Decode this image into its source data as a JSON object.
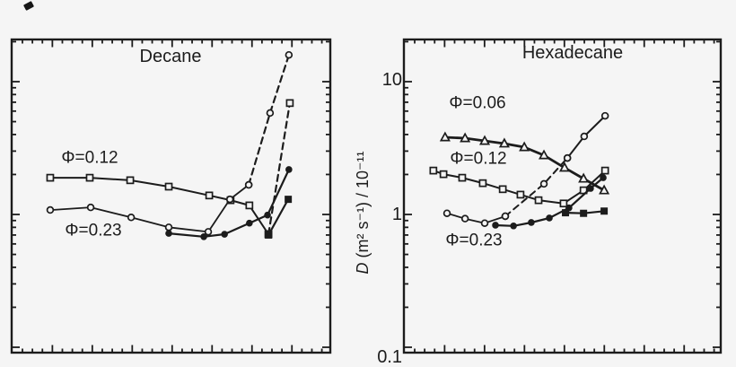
{
  "figure": {
    "background": "#f5f5f5",
    "ink": "#1c1c1c",
    "y_axis": {
      "label_d": "D",
      "label_rest": " (m² s⁻¹) / 10⁻¹¹",
      "scale": "log",
      "tick_labels": [
        "10",
        "1",
        "0.1"
      ],
      "range": [
        0.1,
        20
      ]
    },
    "x_axis": {
      "tick_labels": [],
      "note": "unlabeled minor/major tick marks on top and bottom edges of both panels"
    }
  },
  "chart_data": [
    {
      "type": "line",
      "title": "Decane",
      "ylabel": "D (m2 s-1) / 10-11",
      "yscale": "log",
      "ylim": [
        0.1,
        20
      ],
      "grid": false,
      "legend": "in-plot text annotations",
      "annotations": [
        {
          "text": "Φ=0.12"
        },
        {
          "text": "Φ=0.23"
        }
      ],
      "series": [
        {
          "name": "phi-0.12-open-squares",
          "marker": "square-open",
          "line": "solid",
          "width": 2.0,
          "points": [
            [
              0.121,
              1.89
            ],
            [
              0.245,
              1.89
            ],
            [
              0.372,
              1.81
            ],
            [
              0.493,
              1.62
            ],
            [
              0.62,
              1.39
            ],
            [
              0.687,
              1.28
            ],
            [
              0.746,
              1.17
            ],
            [
              0.806,
              0.71
            ]
          ]
        },
        {
          "name": "phi-0.12-dashed-rise",
          "marker": "square-open",
          "line": "dashed",
          "width": 2.2,
          "points": [
            [
              0.806,
              0.71
            ],
            [
              0.873,
              6.9
            ]
          ]
        },
        {
          "name": "filled-squares",
          "marker": "square-filled",
          "line": "solid",
          "width": 2.2,
          "points": [
            [
              0.806,
              0.7
            ],
            [
              0.868,
              1.3
            ]
          ]
        },
        {
          "name": "phi-0.23-open-circles",
          "marker": "circle-open",
          "line": "solid",
          "width": 1.8,
          "points": [
            [
              0.121,
              1.08
            ],
            [
              0.248,
              1.13
            ],
            [
              0.375,
              0.95
            ],
            [
              0.493,
              0.8
            ],
            [
              0.617,
              0.74
            ],
            [
              0.685,
              1.3
            ],
            [
              0.744,
              1.67
            ]
          ]
        },
        {
          "name": "phi-0.23-dashed-rise",
          "marker": "circle-open",
          "line": "dashed",
          "width": 2.2,
          "points": [
            [
              0.744,
              1.67
            ],
            [
              0.811,
              5.81
            ],
            [
              0.87,
              15.9
            ]
          ]
        },
        {
          "name": "filled-circles",
          "marker": "circle-filled",
          "line": "solid",
          "width": 2.2,
          "points": [
            [
              0.493,
              0.72
            ],
            [
              0.603,
              0.68
            ],
            [
              0.668,
              0.71
            ],
            [
              0.746,
              0.86
            ],
            [
              0.803,
              0.99
            ],
            [
              0.87,
              2.18
            ]
          ]
        }
      ]
    },
    {
      "type": "line",
      "title": "Hexadecane",
      "ylabel": "D (m2 s-1) / 10-11",
      "yscale": "log",
      "ylim": [
        0.1,
        20
      ],
      "grid": false,
      "legend": "in-plot text annotations",
      "annotations": [
        {
          "text": "Φ=0.06"
        },
        {
          "text": "Φ=0.12"
        },
        {
          "text": "Φ=0.23"
        }
      ],
      "series": [
        {
          "name": "phi-0.06-open-triangles",
          "marker": "triangle-open",
          "line": "solid",
          "width": 2.8,
          "points": [
            [
              0.13,
              3.81
            ],
            [
              0.193,
              3.75
            ],
            [
              0.255,
              3.58
            ],
            [
              0.317,
              3.42
            ],
            [
              0.38,
              3.21
            ],
            [
              0.442,
              2.79
            ],
            [
              0.507,
              2.25
            ],
            [
              0.567,
              1.86
            ],
            [
              0.632,
              1.52
            ]
          ]
        },
        {
          "name": "phi-0.12-open-squares",
          "marker": "square-open",
          "line": "solid",
          "width": 2.0,
          "points": [
            [
              0.093,
              2.14
            ],
            [
              0.125,
              2.01
            ],
            [
              0.184,
              1.89
            ],
            [
              0.249,
              1.72
            ],
            [
              0.312,
              1.55
            ],
            [
              0.368,
              1.41
            ],
            [
              0.425,
              1.28
            ],
            [
              0.504,
              1.21
            ],
            [
              0.567,
              1.52
            ],
            [
              0.635,
              2.14
            ]
          ]
        },
        {
          "name": "phi-0.23-open-circles",
          "marker": "circle-open",
          "line": "solid",
          "width": 1.8,
          "points": [
            [
              0.136,
              1.02
            ],
            [
              0.193,
              0.93
            ],
            [
              0.255,
              0.86
            ],
            [
              0.32,
              0.97
            ]
          ]
        },
        {
          "name": "phi-0.23-dashed-rise",
          "marker": "circle-open",
          "line": "dashed",
          "width": 2.0,
          "points": [
            [
              0.32,
              0.97
            ],
            [
              0.442,
              1.7
            ],
            [
              0.516,
              2.66
            ]
          ]
        },
        {
          "name": "phi-0.23-solid-rise",
          "marker": "circle-open",
          "line": "solid",
          "width": 2.0,
          "points": [
            [
              0.516,
              2.66
            ],
            [
              0.569,
              3.87
            ],
            [
              0.635,
              5.53
            ]
          ]
        },
        {
          "name": "filled-circles",
          "marker": "circle-filled",
          "line": "solid",
          "width": 2.2,
          "points": [
            [
              0.289,
              0.83
            ],
            [
              0.346,
              0.82
            ],
            [
              0.402,
              0.87
            ],
            [
              0.459,
              0.94
            ],
            [
              0.521,
              1.12
            ],
            [
              0.589,
              1.57
            ],
            [
              0.629,
              1.89
            ]
          ]
        },
        {
          "name": "filled-squares",
          "marker": "square-filled",
          "line": "solid",
          "width": 2.2,
          "points": [
            [
              0.51,
              1.03
            ],
            [
              0.567,
              1.02
            ],
            [
              0.632,
              1.06
            ]
          ]
        }
      ]
    }
  ]
}
